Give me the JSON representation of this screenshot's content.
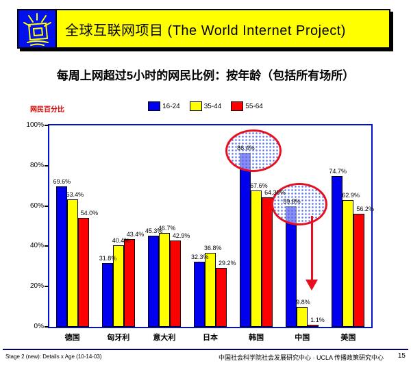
{
  "header": {
    "title": "全球互联网项目 (The World Internet Project)",
    "logo_icon": "wip-screen-logo",
    "banner_color": "#ffff00",
    "logo_color": "#0011ee"
  },
  "subtitle": "每周上网超过5小时的网民比例：按年龄（包括所有场所）",
  "chart_data": {
    "type": "bar",
    "ylabel": "网民百分比",
    "ylim": [
      0,
      100
    ],
    "yticks": [
      "0%",
      "20%",
      "40%",
      "60%",
      "80%",
      "100%"
    ],
    "grid": false,
    "legend_position": "top-center",
    "categories": [
      "德国",
      "匈牙利",
      "意大利",
      "日本",
      "韩国",
      "中国",
      "美国"
    ],
    "series": [
      {
        "name": "16-24",
        "color": "#0000ee",
        "values": [
          69.6,
          31.8,
          45.3,
          32.3,
          86.4,
          59.8,
          74.7
        ],
        "labels": [
          "69.6%",
          "31.8%",
          "45.3%",
          "32.3%",
          "86.4%",
          "59.8%",
          "74.7%"
        ]
      },
      {
        "name": "35-44",
        "color": "#ffff00",
        "values": [
          63.4,
          40.4,
          46.7,
          36.8,
          67.6,
          9.8,
          62.9
        ],
        "labels": [
          "63.4%",
          "40.4%",
          "46.7%",
          "36.8%",
          "67.6%",
          "9.8%",
          "62.9%"
        ]
      },
      {
        "name": "55-64",
        "color": "#ff0000",
        "values": [
          54.0,
          43.4,
          42.9,
          29.2,
          64.3,
          1.1,
          56.2
        ],
        "labels": [
          "54.0%",
          "43.4%",
          "42.9%",
          "29.2%",
          "64.30%",
          "1.1%",
          "56.2%"
        ]
      }
    ],
    "annotations": {
      "ellipses": [
        {
          "category": "韩国",
          "series": "16-24",
          "highlighted_value": "86.4%"
        },
        {
          "category": "中国",
          "series": "16-24",
          "highlighted_value": "59.8%"
        }
      ],
      "arrow": {
        "shape": "down-arrow",
        "color": "#e81020",
        "category": "中国"
      }
    }
  },
  "footer": {
    "left": "Stage 2 (new): Details x Age (10-14-03)",
    "center": "中国社会科学院社会发展研究中心 · UCLA 传播政策研究中心",
    "page_number": "15"
  }
}
